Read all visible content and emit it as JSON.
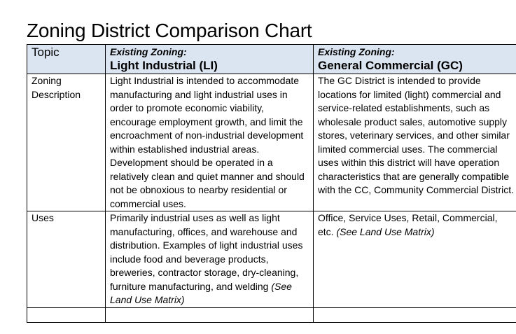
{
  "title": "Zoning District Comparison Chart",
  "table": {
    "header": {
      "topic": "Topic",
      "li_prefix": "Existing Zoning:",
      "li_name": "Light Industrial (LI)",
      "gc_prefix": "Existing Zoning:",
      "gc_name": "General Commercial (GC)"
    },
    "rows": [
      {
        "topic": "Zoning Description",
        "li": "Light Industrial is intended to accommodate manufacturing and light industrial uses in order to promote economic viability, encourage employment growth, and limit the encroachment of non-industrial development within established industrial areas. Development should be operated in a relatively clean and quiet manner and should not be obnoxious to nearby residential or commercial uses.",
        "gc": "The GC District is intended to provide locations for limited (light) commercial and service-related establishments, such as wholesale product sales, automotive supply stores, veterinary services, and other similar limited commercial uses. The commercial uses within this district will have operation characteristics that are generally compatible with the CC, Community Commercial District."
      },
      {
        "topic": "Uses",
        "li": "Primarily industrial uses as well as light manufacturing, offices, and warehouse and distribution. Examples of light industrial uses include food and beverage products, breweries, contractor storage, dry-cleaning, furniture manufacturing, and welding",
        "li_ref": "(See Land Use Matrix)",
        "gc": "Office, Service Uses, Retail, Commercial, etc.",
        "gc_ref": "(See Land Use Matrix)"
      }
    ]
  },
  "colors": {
    "header_bg": "#dbe5f1",
    "border": "#000000"
  }
}
